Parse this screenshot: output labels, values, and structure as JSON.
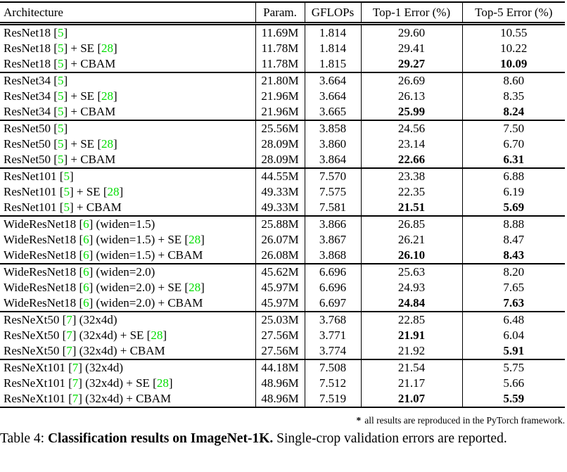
{
  "colors": {
    "citation_green": "#00dd00",
    "text": "#000000",
    "background": "#ffffff"
  },
  "table": {
    "columns": [
      "Architecture",
      "Param.",
      "GFLOPs",
      "Top-1 Error (%)",
      "Top-5 Error (%)"
    ],
    "groups": [
      {
        "rows": [
          {
            "arch": "ResNet18 [5]",
            "params": "11.69M",
            "gflops": "1.814",
            "top1": "29.60",
            "top5": "10.55",
            "top1_bold": false,
            "top5_bold": false
          },
          {
            "arch": "ResNet18 [5] + SE [28]",
            "params": "11.78M",
            "gflops": "1.814",
            "top1": "29.41",
            "top5": "10.22",
            "top1_bold": false,
            "top5_bold": false
          },
          {
            "arch": "ResNet18 [5] + CBAM",
            "params": "11.78M",
            "gflops": "1.815",
            "top1": "29.27",
            "top5": "10.09",
            "top1_bold": true,
            "top5_bold": true
          }
        ]
      },
      {
        "rows": [
          {
            "arch": "ResNet34 [5]",
            "params": "21.80M",
            "gflops": "3.664",
            "top1": "26.69",
            "top5": "8.60",
            "top1_bold": false,
            "top5_bold": false
          },
          {
            "arch": "ResNet34 [5] + SE [28]",
            "params": "21.96M",
            "gflops": "3.664",
            "top1": "26.13",
            "top5": "8.35",
            "top1_bold": false,
            "top5_bold": false
          },
          {
            "arch": "ResNet34 [5] + CBAM",
            "params": "21.96M",
            "gflops": "3.665",
            "top1": "25.99",
            "top5": "8.24",
            "top1_bold": true,
            "top5_bold": true
          }
        ]
      },
      {
        "rows": [
          {
            "arch": "ResNet50 [5]",
            "params": "25.56M",
            "gflops": "3.858",
            "top1": "24.56",
            "top5": "7.50",
            "top1_bold": false,
            "top5_bold": false
          },
          {
            "arch": "ResNet50 [5] + SE [28]",
            "params": "28.09M",
            "gflops": "3.860",
            "top1": "23.14",
            "top5": "6.70",
            "top1_bold": false,
            "top5_bold": false
          },
          {
            "arch": "ResNet50 [5] + CBAM",
            "params": "28.09M",
            "gflops": "3.864",
            "top1": "22.66",
            "top5": "6.31",
            "top1_bold": true,
            "top5_bold": true
          }
        ]
      },
      {
        "rows": [
          {
            "arch": "ResNet101 [5]",
            "params": "44.55M",
            "gflops": "7.570",
            "top1": "23.38",
            "top5": "6.88",
            "top1_bold": false,
            "top5_bold": false
          },
          {
            "arch": "ResNet101 [5] + SE [28]",
            "params": "49.33M",
            "gflops": "7.575",
            "top1": "22.35",
            "top5": "6.19",
            "top1_bold": false,
            "top5_bold": false
          },
          {
            "arch": "ResNet101 [5] + CBAM",
            "params": "49.33M",
            "gflops": "7.581",
            "top1": "21.51",
            "top5": "5.69",
            "top1_bold": true,
            "top5_bold": true
          }
        ]
      },
      {
        "rows": [
          {
            "arch": "WideResNet18 [6] (widen=1.5)",
            "params": "25.88M",
            "gflops": "3.866",
            "top1": "26.85",
            "top5": "8.88",
            "top1_bold": false,
            "top5_bold": false
          },
          {
            "arch": "WideResNet18 [6] (widen=1.5) + SE [28]",
            "params": "26.07M",
            "gflops": "3.867",
            "top1": "26.21",
            "top5": "8.47",
            "top1_bold": false,
            "top5_bold": false
          },
          {
            "arch": "WideResNet18 [6] (widen=1.5) + CBAM",
            "params": "26.08M",
            "gflops": "3.868",
            "top1": "26.10",
            "top5": "8.43",
            "top1_bold": true,
            "top5_bold": true
          }
        ]
      },
      {
        "rows": [
          {
            "arch": "WideResNet18 [6] (widen=2.0)",
            "params": "45.62M",
            "gflops": "6.696",
            "top1": "25.63",
            "top5": "8.20",
            "top1_bold": false,
            "top5_bold": false
          },
          {
            "arch": "WideResNet18 [6] (widen=2.0) + SE [28]",
            "params": "45.97M",
            "gflops": "6.696",
            "top1": "24.93",
            "top5": "7.65",
            "top1_bold": false,
            "top5_bold": false
          },
          {
            "arch": "WideResNet18 [6] (widen=2.0) + CBAM",
            "params": "45.97M",
            "gflops": "6.697",
            "top1": "24.84",
            "top5": "7.63",
            "top1_bold": true,
            "top5_bold": true
          }
        ]
      },
      {
        "rows": [
          {
            "arch": "ResNeXt50 [7] (32x4d)",
            "params": "25.03M",
            "gflops": "3.768",
            "top1": "22.85",
            "top5": "6.48",
            "top1_bold": false,
            "top5_bold": false
          },
          {
            "arch": "ResNeXt50 [7] (32x4d) + SE [28]",
            "params": "27.56M",
            "gflops": "3.771",
            "top1": "21.91",
            "top5": "6.04",
            "top1_bold": true,
            "top5_bold": false
          },
          {
            "arch": "ResNeXt50 [7] (32x4d) + CBAM",
            "params": "27.56M",
            "gflops": "3.774",
            "top1": "21.92",
            "top5": "5.91",
            "top1_bold": false,
            "top5_bold": true
          }
        ]
      },
      {
        "rows": [
          {
            "arch": "ResNeXt101 [7] (32x4d)",
            "params": "44.18M",
            "gflops": "7.508",
            "top1": "21.54",
            "top5": "5.75",
            "top1_bold": false,
            "top5_bold": false
          },
          {
            "arch": "ResNeXt101 [7] (32x4d) + SE [28]",
            "params": "48.96M",
            "gflops": "7.512",
            "top1": "21.17",
            "top5": "5.66",
            "top1_bold": false,
            "top5_bold": false
          },
          {
            "arch": "ResNeXt101 [7] (32x4d) + CBAM",
            "params": "48.96M",
            "gflops": "7.519",
            "top1": "21.07",
            "top5": "5.59",
            "top1_bold": true,
            "top5_bold": true
          }
        ]
      }
    ]
  },
  "footnote": {
    "marker": "*",
    "text": "all results are reproduced in the PyTorch framework."
  },
  "caption": {
    "prefix": "Table 4: ",
    "bold": "Classification results on ImageNet-1K.",
    "suffix": " Single-crop validation errors are reported."
  }
}
